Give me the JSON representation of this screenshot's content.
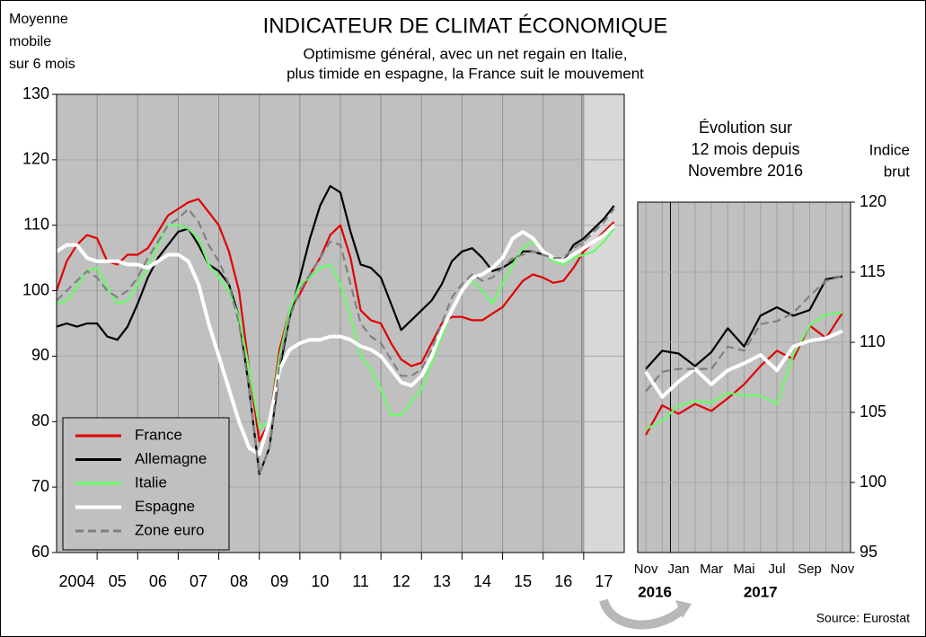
{
  "chart_data": [
    {
      "type": "line",
      "title": "INDICATEUR DE CLIMAT ÉCONOMIQUE",
      "subtitle": [
        "Optimisme général, avec un net regain en Italie,",
        "plus timide en espagne, la France suit le mouvement"
      ],
      "y_label": [
        "Moyenne",
        "mobile",
        "sur 6 mois"
      ],
      "x": [
        2004,
        2004.25,
        2004.5,
        2004.75,
        2005,
        2005.25,
        2005.5,
        2005.75,
        2006,
        2006.25,
        2006.5,
        2006.75,
        2007,
        2007.25,
        2007.5,
        2007.75,
        2008,
        2008.25,
        2008.5,
        2008.75,
        2009,
        2009.25,
        2009.5,
        2009.75,
        2010,
        2010.25,
        2010.5,
        2010.75,
        2011,
        2011.25,
        2011.5,
        2011.75,
        2012,
        2012.25,
        2012.5,
        2012.75,
        2013,
        2013.25,
        2013.5,
        2013.75,
        2014,
        2014.25,
        2014.5,
        2014.75,
        2015,
        2015.25,
        2015.5,
        2015.75,
        2016,
        2016.25,
        2016.5,
        2016.75,
        2017,
        2017.25,
        2017.5,
        2017.75
      ],
      "series": [
        {
          "name": "France",
          "color": "#e00000",
          "values": [
            100,
            104.5,
            107,
            108.5,
            108,
            104.5,
            104,
            105.5,
            105.5,
            106.5,
            109,
            111.5,
            112.5,
            113.5,
            114,
            112,
            110,
            106,
            100,
            88,
            77,
            80,
            91,
            97,
            99.5,
            102.5,
            105,
            108.5,
            110,
            105,
            97,
            95.5,
            95,
            92,
            89.5,
            88.5,
            89,
            92,
            95,
            96,
            96,
            95.5,
            95.5,
            96.5,
            97.5,
            99.5,
            101.5,
            102.5,
            102,
            101.2,
            101.5,
            103.5,
            106,
            107.5,
            109,
            110.5
          ]
        },
        {
          "name": "Allemagne",
          "color": "#000000",
          "values": [
            94.5,
            95,
            94.5,
            95,
            95,
            93,
            92.5,
            94.5,
            98,
            102,
            105,
            107,
            109,
            109.5,
            107,
            104,
            103,
            101,
            96,
            85,
            72,
            76,
            88,
            96,
            102,
            108,
            113,
            116,
            115,
            109,
            104,
            103.5,
            102,
            98,
            94,
            95.5,
            97,
            98.5,
            101,
            104.5,
            106,
            106.5,
            105,
            103,
            103.5,
            104.5,
            106,
            106,
            105.5,
            105,
            104.5,
            107,
            108,
            109.5,
            111,
            113
          ]
        },
        {
          "name": "Italie",
          "color": "#66ff66",
          "values": [
            98,
            98.5,
            100.5,
            103,
            103.5,
            100.5,
            98,
            98.5,
            101,
            103.5,
            107,
            110,
            110,
            109.5,
            108,
            104,
            102,
            100,
            96,
            88,
            79,
            80,
            90,
            97,
            101,
            102,
            103.5,
            104,
            101,
            96,
            90,
            88,
            85,
            81,
            81,
            83,
            85,
            89,
            93,
            97,
            100,
            101.5,
            100,
            98,
            101,
            104,
            106.5,
            107.5,
            106,
            104.5,
            104,
            105,
            105.5,
            106,
            107.5,
            109.5
          ]
        },
        {
          "name": "Espagne",
          "color": "#ffffff",
          "values": [
            106,
            107,
            107,
            105,
            104.5,
            104.5,
            104.5,
            104,
            104,
            103.5,
            104.5,
            105.5,
            105.5,
            104.5,
            101,
            95,
            90,
            85,
            80,
            76,
            75,
            80,
            88,
            91,
            92,
            92.5,
            92.5,
            93,
            93,
            92.5,
            91.5,
            91,
            90,
            88,
            86,
            85.5,
            87,
            90,
            94,
            97,
            100,
            102,
            102.5,
            103.5,
            105,
            108,
            109,
            108,
            106,
            105,
            104.5,
            105.5,
            106.5,
            107.5,
            108.5,
            110
          ]
        },
        {
          "name": "Zone euro",
          "color": "#808080",
          "dashed": true,
          "values": [
            98.5,
            100,
            101.5,
            103,
            102,
            100,
            99,
            100,
            102,
            105,
            107.5,
            110,
            111,
            112.5,
            110.5,
            107,
            104.5,
            101,
            95,
            85,
            72,
            76,
            89,
            96,
            100,
            102.5,
            105,
            107.5,
            107,
            101,
            95,
            93,
            92,
            89.5,
            87,
            87,
            88,
            91,
            95,
            99,
            101,
            102.5,
            101.5,
            102,
            103.5,
            105,
            105.5,
            106,
            105.5,
            105,
            105,
            106.5,
            107.5,
            109,
            110.5,
            112.5
          ]
        }
      ],
      "xlim": [
        2004,
        2018
      ],
      "xticks": [
        {
          "value": 2004.5,
          "label": "2004"
        },
        {
          "value": 2005.5,
          "label": "05"
        },
        {
          "value": 2006.5,
          "label": "06"
        },
        {
          "value": 2007.5,
          "label": "07"
        },
        {
          "value": 2008.5,
          "label": "08"
        },
        {
          "value": 2009.5,
          "label": "09"
        },
        {
          "value": 2010.5,
          "label": "10"
        },
        {
          "value": 2011.5,
          "label": "11"
        },
        {
          "value": 2012.5,
          "label": "12"
        },
        {
          "value": 2013.5,
          "label": "13"
        },
        {
          "value": 2014.5,
          "label": "14"
        },
        {
          "value": 2015.5,
          "label": "15"
        },
        {
          "value": 2016.5,
          "label": "16"
        },
        {
          "value": 2017.5,
          "label": "17"
        }
      ],
      "xgrid": [
        2005,
        2006,
        2007,
        2008,
        2009,
        2010,
        2011,
        2012,
        2013,
        2014,
        2015,
        2016,
        2017
      ],
      "highlight_xlim": [
        2017,
        2018
      ],
      "ylim": [
        60,
        130
      ],
      "yticks": [
        60,
        70,
        80,
        90,
        100,
        110,
        120,
        130
      ],
      "grid": true,
      "legend": "lower left"
    },
    {
      "type": "line",
      "title": [
        "Évolution sur",
        "12 mois depuis",
        "Novembre 2016"
      ],
      "y_label": [
        "Indice",
        "brut"
      ],
      "categories": [
        "Nov",
        null,
        "Jan",
        null,
        "Mar",
        null,
        "Mai",
        null,
        "Jul",
        null,
        "Sep",
        null,
        "Nov"
      ],
      "year_labels": [
        "2016",
        "2017"
      ],
      "series": [
        {
          "name": "France",
          "color": "#e00000",
          "values": [
            103.4,
            105.5,
            104.9,
            105.6,
            105.1,
            106.0,
            107.0,
            108.3,
            109.4,
            108.8,
            111.2,
            110.3,
            112.1
          ]
        },
        {
          "name": "Allemagne",
          "color": "#000000",
          "values": [
            108.1,
            109.4,
            109.2,
            108.3,
            109.3,
            111.0,
            109.7,
            111.9,
            112.5,
            111.9,
            112.3,
            114.5,
            114.7
          ]
        },
        {
          "name": "Italie",
          "color": "#66ff66",
          "values": [
            103.8,
            104.4,
            105.5,
            105.8,
            105.7,
            106.4,
            106.2,
            106.2,
            105.6,
            109.1,
            111.2,
            112.0,
            112.1
          ]
        },
        {
          "name": "Espagne",
          "color": "#ffffff",
          "values": [
            107.9,
            106.1,
            107.2,
            108.1,
            107.0,
            108.0,
            108.5,
            109.1,
            108.0,
            109.7,
            110.1,
            110.3,
            110.8
          ]
        },
        {
          "name": "Zone euro",
          "color": "#808080",
          "dashed": true,
          "values": [
            106.5,
            107.9,
            108.1,
            108.1,
            108.1,
            109.7,
            109.4,
            111.3,
            111.5,
            112.1,
            113.3,
            114.4,
            114.7
          ]
        }
      ],
      "ylim": [
        95,
        120
      ],
      "yticks": [
        95,
        100,
        105,
        110,
        115,
        120
      ],
      "grid": true
    }
  ],
  "source": "Source: Eurostat"
}
